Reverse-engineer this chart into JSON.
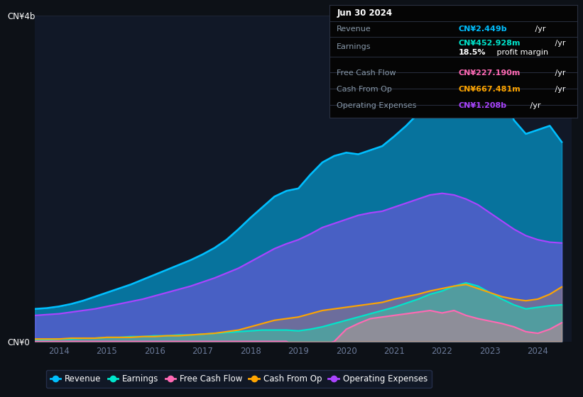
{
  "bg_color": "#0d1117",
  "plot_bg_color": "#111827",
  "colors": {
    "revenue": "#00bfff",
    "earnings": "#00e5cc",
    "free_cash_flow": "#ff69b4",
    "cash_from_op": "#ffa500",
    "operating_expenses": "#aa44ff"
  },
  "tooltip_bg": "#0a0a0a",
  "tooltip_border": "#2a3040",
  "ylabel_4b": "CN¥4b",
  "ylabel_0": "CN¥0",
  "years_x": [
    2013.5,
    2013.75,
    2014.0,
    2014.25,
    2014.5,
    2014.75,
    2015.0,
    2015.25,
    2015.5,
    2015.75,
    2016.0,
    2016.25,
    2016.5,
    2016.75,
    2017.0,
    2017.25,
    2017.5,
    2017.75,
    2018.0,
    2018.25,
    2018.5,
    2018.75,
    2019.0,
    2019.25,
    2019.5,
    2019.75,
    2020.0,
    2020.25,
    2020.5,
    2020.75,
    2021.0,
    2021.25,
    2021.5,
    2021.75,
    2022.0,
    2022.25,
    2022.5,
    2022.75,
    2023.0,
    2023.25,
    2023.5,
    2023.75,
    2024.0,
    2024.25,
    2024.5
  ],
  "revenue": [
    0.4,
    0.41,
    0.43,
    0.46,
    0.5,
    0.55,
    0.6,
    0.65,
    0.7,
    0.76,
    0.82,
    0.88,
    0.94,
    1.0,
    1.07,
    1.15,
    1.25,
    1.38,
    1.52,
    1.65,
    1.78,
    1.85,
    1.88,
    2.05,
    2.2,
    2.28,
    2.32,
    2.3,
    2.35,
    2.4,
    2.52,
    2.65,
    2.8,
    3.0,
    3.2,
    3.5,
    3.72,
    3.65,
    3.55,
    3.1,
    2.72,
    2.55,
    2.6,
    2.65,
    2.45
  ],
  "earnings": [
    0.02,
    0.02,
    0.03,
    0.03,
    0.04,
    0.04,
    0.05,
    0.05,
    0.06,
    0.06,
    0.07,
    0.07,
    0.08,
    0.08,
    0.09,
    0.1,
    0.11,
    0.12,
    0.13,
    0.14,
    0.14,
    0.14,
    0.13,
    0.15,
    0.18,
    0.22,
    0.26,
    0.3,
    0.34,
    0.38,
    0.42,
    0.47,
    0.52,
    0.58,
    0.62,
    0.68,
    0.72,
    0.68,
    0.6,
    0.52,
    0.45,
    0.4,
    0.42,
    0.44,
    0.45
  ],
  "free_cash_flow": [
    0.0,
    0.0,
    0.0,
    0.0,
    0.0,
    0.0,
    0.0,
    0.0,
    0.0,
    0.0,
    0.0,
    0.0,
    0.0,
    0.0,
    0.0,
    0.0,
    0.0,
    0.0,
    0.0,
    0.0,
    0.0,
    0.0,
    -0.08,
    -0.12,
    -0.05,
    0.0,
    0.15,
    0.22,
    0.28,
    0.3,
    0.32,
    0.34,
    0.36,
    0.38,
    0.35,
    0.38,
    0.32,
    0.28,
    0.25,
    0.22,
    0.18,
    0.12,
    0.1,
    0.15,
    0.23
  ],
  "cash_from_op": [
    0.03,
    0.03,
    0.03,
    0.04,
    0.04,
    0.04,
    0.05,
    0.05,
    0.05,
    0.06,
    0.06,
    0.07,
    0.07,
    0.08,
    0.09,
    0.1,
    0.12,
    0.14,
    0.18,
    0.22,
    0.26,
    0.28,
    0.3,
    0.34,
    0.38,
    0.4,
    0.42,
    0.44,
    0.46,
    0.48,
    0.52,
    0.55,
    0.58,
    0.62,
    0.65,
    0.68,
    0.7,
    0.65,
    0.6,
    0.55,
    0.52,
    0.5,
    0.52,
    0.58,
    0.67
  ],
  "operating_expenses": [
    0.32,
    0.33,
    0.34,
    0.36,
    0.38,
    0.4,
    0.43,
    0.46,
    0.49,
    0.52,
    0.56,
    0.6,
    0.64,
    0.68,
    0.73,
    0.78,
    0.84,
    0.9,
    0.98,
    1.06,
    1.14,
    1.2,
    1.25,
    1.32,
    1.4,
    1.45,
    1.5,
    1.55,
    1.58,
    1.6,
    1.65,
    1.7,
    1.75,
    1.8,
    1.82,
    1.8,
    1.75,
    1.68,
    1.58,
    1.48,
    1.38,
    1.3,
    1.25,
    1.22,
    1.21
  ],
  "ylim": [
    0,
    4.0
  ],
  "xlim": [
    2013.5,
    2024.7
  ],
  "xticks": [
    2014,
    2015,
    2016,
    2017,
    2018,
    2019,
    2020,
    2021,
    2022,
    2023,
    2024
  ],
  "grid_color": "#1e2535",
  "tick_color": "#6b7a99",
  "legend_labels": [
    "Revenue",
    "Earnings",
    "Free Cash Flow",
    "Cash From Op",
    "Operating Expenses"
  ],
  "legend_bg": "#131b2a",
  "legend_edge": "#2a3555"
}
